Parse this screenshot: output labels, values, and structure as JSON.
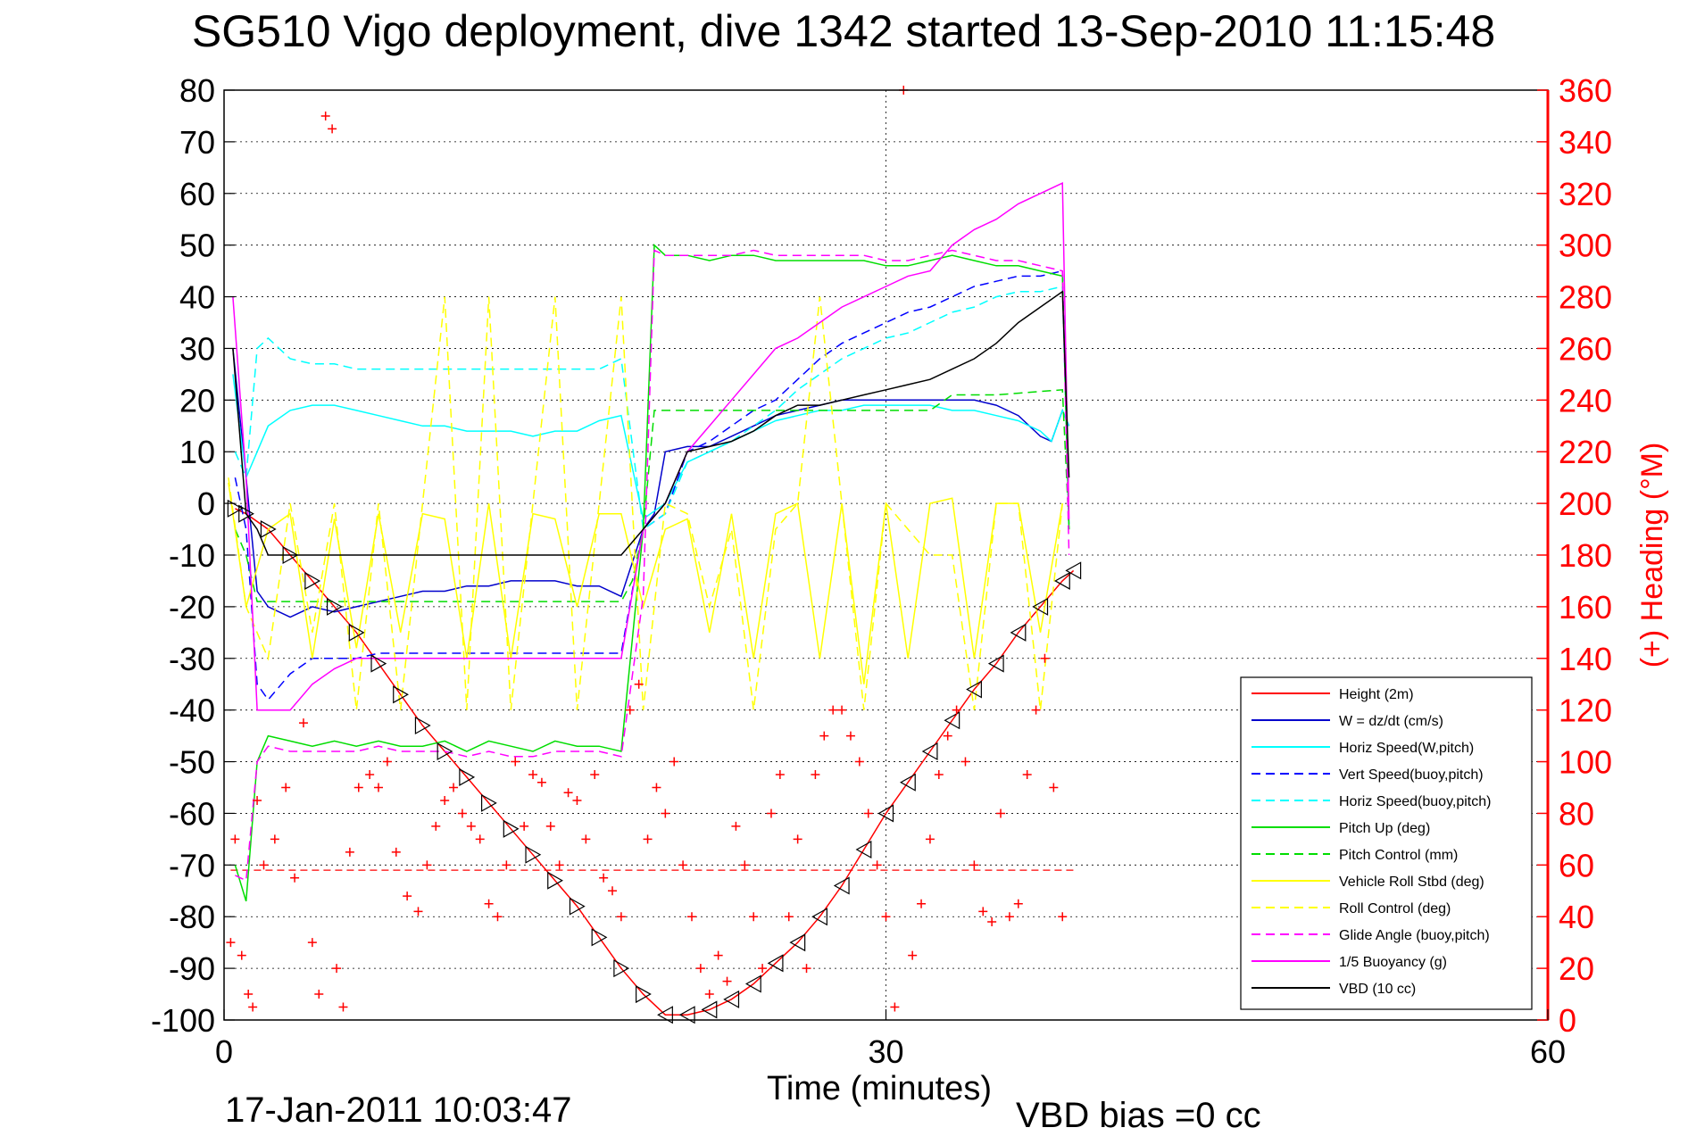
{
  "chart_data": {
    "type": "line",
    "title": "SG510 Vigo deployment, dive 1342 started 13-Sep-2010 11:15:48",
    "xlabel": "Time (minutes)",
    "ylabel_right": "(+) Heading (°M)",
    "xlim": [
      0,
      60
    ],
    "ylim_left": [
      -100,
      80
    ],
    "ylim_right": [
      0,
      360
    ],
    "x_ticks": [
      0,
      30,
      60
    ],
    "y_ticks_left": [
      80,
      70,
      60,
      50,
      40,
      30,
      20,
      10,
      0,
      -10,
      -20,
      -30,
      -40,
      -50,
      -60,
      -70,
      -80,
      -90,
      -100
    ],
    "y_ticks_right": [
      360,
      340,
      320,
      300,
      280,
      260,
      240,
      220,
      200,
      180,
      160,
      140,
      120,
      100,
      80,
      60,
      40,
      20,
      0
    ],
    "grid": true,
    "legend_position": "bottom-right",
    "annotations": {
      "footer_left": "17-Jan-2011 10:03:47",
      "footer_right": "VBD bias =0 cc"
    },
    "series": [
      {
        "name": "Height (2m)",
        "color": "#ff0000",
        "style": "solid",
        "x": [
          0.5,
          1,
          2,
          3,
          4,
          5,
          6,
          7,
          8,
          9,
          10,
          11,
          12,
          13,
          14,
          15,
          16,
          17,
          18,
          19,
          20,
          21,
          22,
          23,
          24,
          25,
          26,
          27,
          28,
          29,
          30,
          31,
          32,
          33,
          34,
          35,
          36,
          37,
          38,
          38.5
        ],
        "y": [
          -1,
          -2,
          -5,
          -10,
          -15,
          -20,
          -25,
          -31,
          -37,
          -43,
          -48,
          -53,
          -58,
          -63,
          -68,
          -73,
          -78,
          -84,
          -90,
          -95,
          -99,
          -99,
          -98,
          -96,
          -93,
          -89,
          -85,
          -80,
          -74,
          -67,
          -60,
          -54,
          -48,
          -42,
          -36,
          -31,
          -25,
          -20,
          -15,
          -13
        ]
      },
      {
        "name": "W = dz/dt (cm/s)",
        "color": "#0000cc",
        "style": "solid",
        "x": [
          0.4,
          1,
          1.5,
          2,
          3,
          4,
          5,
          6,
          7,
          8,
          9,
          10,
          11,
          12,
          13,
          14,
          15,
          16,
          17,
          18,
          19,
          19.5,
          20,
          21,
          22,
          23,
          24,
          25,
          26,
          27,
          28,
          29,
          30,
          31,
          32,
          33,
          34,
          35,
          36,
          37,
          37.5,
          38,
          38.3
        ],
        "y": [
          30,
          5,
          -17,
          -20,
          -22,
          -20,
          -21,
          -20,
          -19,
          -18,
          -17,
          -17,
          -16,
          -16,
          -15,
          -15,
          -15,
          -16,
          -16,
          -18,
          -5,
          -2,
          10,
          11,
          11,
          13,
          15,
          17,
          18,
          19,
          20,
          20,
          20,
          20,
          20,
          20,
          20,
          19,
          17,
          13,
          12,
          18,
          15
        ]
      },
      {
        "name": "Horiz Speed(W,pitch)",
        "color": "#00ffff",
        "style": "solid",
        "x": [
          0.4,
          1,
          1.5,
          2,
          3,
          4,
          5,
          6,
          7,
          8,
          9,
          10,
          11,
          12,
          13,
          14,
          15,
          16,
          17,
          18,
          19,
          20,
          21,
          22,
          23,
          24,
          25,
          26,
          27,
          28,
          29,
          30,
          31,
          32,
          33,
          34,
          35,
          36,
          37,
          37.5,
          38,
          38.3
        ],
        "y": [
          25,
          5,
          10,
          15,
          18,
          19,
          19,
          18,
          17,
          16,
          15,
          15,
          14,
          14,
          14,
          13,
          14,
          14,
          16,
          17,
          -3,
          0,
          8,
          10,
          12,
          14,
          16,
          17,
          18,
          18,
          19,
          19,
          19,
          19,
          18,
          18,
          17,
          16,
          14,
          12,
          18,
          15
        ]
      },
      {
        "name": "Vert Speed(buoy,pitch)",
        "color": "#0000ff",
        "style": "dashed",
        "x": [
          0.5,
          1,
          1.5,
          2,
          3,
          4,
          5,
          6,
          7,
          8,
          9,
          10,
          11,
          12,
          13,
          14,
          15,
          16,
          17,
          18,
          19,
          20,
          21,
          22,
          23,
          24,
          25,
          26,
          27,
          28,
          29,
          30,
          31,
          32,
          33,
          34,
          35,
          36,
          37,
          38,
          38.3
        ],
        "y": [
          5,
          -5,
          -35,
          -38,
          -33,
          -30,
          -30,
          -30,
          -29,
          -29,
          -29,
          -29,
          -29,
          -29,
          -29,
          -29,
          -29,
          -29,
          -29,
          -29,
          -5,
          -2,
          10,
          12,
          15,
          18,
          20,
          24,
          28,
          31,
          33,
          35,
          37,
          38,
          40,
          42,
          43,
          44,
          44,
          45,
          -5
        ]
      },
      {
        "name": "Horiz Speed(buoy,pitch)",
        "color": "#00ffff",
        "style": "dashed",
        "x": [
          0.5,
          1,
          1.5,
          2,
          3,
          4,
          5,
          6,
          7,
          8,
          9,
          10,
          11,
          12,
          13,
          14,
          15,
          16,
          17,
          18,
          19,
          20,
          21,
          22,
          23,
          24,
          25,
          26,
          27,
          28,
          29,
          30,
          31,
          32,
          33,
          34,
          35,
          36,
          37,
          38,
          38.3
        ],
        "y": [
          10,
          5,
          30,
          32,
          28,
          27,
          27,
          26,
          26,
          26,
          26,
          26,
          26,
          26,
          26,
          26,
          26,
          26,
          26,
          28,
          -5,
          -2,
          8,
          10,
          12,
          15,
          18,
          22,
          25,
          28,
          30,
          32,
          33,
          35,
          37,
          38,
          40,
          41,
          41,
          42,
          -5
        ]
      },
      {
        "name": "Pitch Up (deg)",
        "color": "#00dd00",
        "style": "solid",
        "x": [
          0.5,
          1,
          1.5,
          2,
          3,
          4,
          5,
          6,
          7,
          8,
          9,
          10,
          11,
          12,
          13,
          14,
          15,
          16,
          17,
          18,
          19,
          19.5,
          20,
          21,
          22,
          23,
          24,
          25,
          26,
          27,
          28,
          29,
          30,
          31,
          32,
          33,
          34,
          35,
          36,
          37,
          38,
          38.3
        ],
        "y": [
          -70,
          -77,
          -50,
          -45,
          -46,
          -47,
          -46,
          -47,
          -46,
          -47,
          -47,
          -46,
          -48,
          -46,
          -47,
          -48,
          -46,
          -47,
          -47,
          -48,
          -5,
          50,
          48,
          48,
          47,
          48,
          48,
          47,
          47,
          47,
          47,
          47,
          46,
          46,
          47,
          48,
          47,
          46,
          46,
          45,
          44,
          -5
        ]
      },
      {
        "name": "Pitch Control (mm)",
        "color": "#00dd00",
        "style": "dashed",
        "x": [
          0.5,
          1,
          1.5,
          2,
          5,
          10,
          15,
          18,
          18.5,
          19,
          19.5,
          20,
          25,
          30,
          32,
          33,
          35,
          38,
          38.3
        ],
        "y": [
          -5,
          -10,
          -19,
          -19,
          -19,
          -19,
          -19,
          -19,
          -15,
          -5,
          18,
          18,
          18,
          18,
          18,
          21,
          21,
          22,
          -5
        ]
      },
      {
        "name": "Vehicle Roll Stbd (deg)",
        "color": "#ffff00",
        "style": "solid",
        "x": [
          0.2,
          1,
          2,
          3,
          4,
          5,
          6,
          7,
          8,
          9,
          10,
          11,
          12,
          13,
          14,
          15,
          16,
          17,
          18,
          19,
          20,
          21,
          22,
          23,
          24,
          25,
          26,
          27,
          28,
          29,
          30,
          31,
          32,
          33,
          34,
          35,
          36,
          37,
          38
        ],
        "y": [
          4,
          -20,
          -5,
          -2,
          -30,
          -3,
          -28,
          -2,
          -25,
          -2,
          -3,
          -30,
          0,
          -30,
          -2,
          -3,
          -20,
          -2,
          -2,
          -20,
          -5,
          -3,
          -25,
          -2,
          -30,
          -2,
          0,
          -30,
          0,
          -35,
          0,
          -30,
          0,
          1,
          -30,
          0,
          0,
          -25,
          0
        ]
      },
      {
        "name": "Roll Control (deg)",
        "color": "#ffff00",
        "style": "dashed",
        "x": [
          0.2,
          1,
          2,
          3,
          4,
          5,
          6,
          7,
          8,
          9,
          10,
          11,
          12,
          13,
          14,
          15,
          16,
          17,
          18,
          19,
          20,
          21,
          22,
          23,
          24,
          25,
          26,
          27,
          28,
          29,
          30,
          31,
          32,
          33,
          34,
          35,
          36,
          37,
          38
        ],
        "y": [
          5,
          -20,
          -30,
          0,
          -25,
          0,
          -40,
          0,
          -40,
          0,
          40,
          -40,
          40,
          -40,
          0,
          40,
          -40,
          0,
          40,
          -40,
          0,
          -2,
          -20,
          -5,
          -40,
          -5,
          0,
          40,
          0,
          -40,
          0,
          -5,
          -10,
          -10,
          -40,
          0,
          0,
          -40,
          0
        ]
      },
      {
        "name": "Glide Angle (buoy,pitch)",
        "color": "#ff00ff",
        "style": "dashed",
        "x": [
          0.5,
          1,
          1.5,
          2,
          3,
          4,
          5,
          6,
          7,
          8,
          9,
          10,
          11,
          12,
          13,
          14,
          15,
          16,
          17,
          18,
          19,
          19.5,
          20,
          21,
          22,
          23,
          24,
          25,
          26,
          27,
          28,
          29,
          30,
          31,
          32,
          33,
          34,
          35,
          36,
          37,
          38,
          38.3
        ],
        "y": [
          -72,
          -73,
          -50,
          -47,
          -48,
          -48,
          -48,
          -48,
          -47,
          -48,
          -48,
          -48,
          -49,
          -48,
          -49,
          -49,
          -48,
          -48,
          -48,
          -49,
          -18,
          49,
          48,
          48,
          48,
          48,
          49,
          48,
          48,
          48,
          48,
          48,
          47,
          47,
          48,
          49,
          48,
          47,
          47,
          46,
          45,
          -10
        ]
      },
      {
        "name": "1/5 Buoyancy (g)",
        "color": "#ff00ff",
        "style": "solid",
        "x": [
          0.4,
          1,
          1.5,
          2,
          3,
          4,
          5,
          6,
          7,
          8,
          9,
          10,
          11,
          12,
          13,
          14,
          15,
          16,
          17,
          18,
          19,
          20,
          21,
          22,
          23,
          24,
          25,
          26,
          27,
          28,
          29,
          30,
          31,
          32,
          33,
          34,
          35,
          36,
          37,
          38,
          38.3
        ],
        "y": [
          40,
          5,
          -40,
          -40,
          -40,
          -35,
          -32,
          -30,
          -30,
          -30,
          -30,
          -30,
          -30,
          -30,
          -30,
          -30,
          -30,
          -30,
          -30,
          -30,
          -5,
          0,
          10,
          15,
          20,
          25,
          30,
          32,
          35,
          38,
          40,
          42,
          44,
          45,
          50,
          53,
          55,
          58,
          60,
          62,
          -3
        ]
      },
      {
        "name": "VBD (10 cc)",
        "color": "#000000",
        "style": "solid",
        "x": [
          0.4,
          1,
          1.5,
          2,
          5,
          10,
          15,
          18,
          19,
          20,
          21,
          22,
          23,
          24,
          25,
          26,
          27,
          28,
          29,
          30,
          31,
          32,
          33,
          34,
          35,
          36,
          37,
          38,
          38.3
        ],
        "y": [
          30,
          -2,
          -5,
          -10,
          -10,
          -10,
          -10,
          -10,
          -5,
          0,
          10,
          11,
          12,
          14,
          17,
          19,
          19,
          20,
          21,
          22,
          23,
          24,
          26,
          28,
          31,
          35,
          38,
          41,
          5
        ]
      }
    ],
    "heading_scatter": {
      "name": "Heading",
      "color": "#ff0000",
      "marker": "+",
      "axis": "right",
      "x": [
        0.3,
        0.5,
        0.8,
        1.1,
        1.3,
        1.5,
        1.8,
        2.3,
        2.8,
        3.2,
        3.6,
        4.0,
        4.3,
        4.6,
        4.9,
        5.1,
        5.4,
        5.7,
        6.1,
        6.6,
        7.0,
        7.4,
        7.8,
        8.3,
        8.8,
        9.2,
        9.6,
        10.0,
        10.4,
        10.8,
        11.2,
        11.6,
        12.0,
        12.4,
        12.8,
        13.2,
        13.6,
        14.0,
        14.4,
        14.8,
        15.2,
        15.6,
        16.0,
        16.4,
        16.8,
        17.2,
        17.6,
        18.0,
        18.4,
        18.8,
        19.2,
        19.6,
        20.0,
        20.4,
        20.8,
        21.2,
        21.6,
        22.0,
        22.4,
        22.8,
        23.2,
        23.6,
        24.0,
        24.4,
        24.8,
        25.2,
        25.6,
        26.0,
        26.4,
        26.8,
        27.2,
        27.6,
        28.0,
        28.4,
        28.8,
        29.2,
        29.6,
        30.0,
        30.4,
        30.8,
        31.2,
        31.6,
        32.0,
        32.4,
        32.8,
        33.2,
        33.6,
        34.0,
        34.4,
        34.8,
        35.2,
        35.6,
        36.0,
        36.4,
        36.8,
        37.2,
        37.6,
        38.0
      ],
      "y": [
        30,
        70,
        25,
        10,
        5,
        85,
        60,
        70,
        90,
        55,
        115,
        30,
        10,
        350,
        345,
        20,
        5,
        65,
        90,
        95,
        90,
        100,
        65,
        48,
        42,
        60,
        75,
        85,
        90,
        80,
        75,
        70,
        45,
        40,
        60,
        100,
        75,
        95,
        92,
        75,
        60,
        88,
        85,
        70,
        95,
        55,
        50,
        40,
        120,
        130,
        70,
        90,
        80,
        100,
        60,
        40,
        20,
        10,
        25,
        15,
        75,
        60,
        40,
        20,
        80,
        95,
        40,
        70,
        20,
        95,
        110,
        120,
        120,
        110,
        100,
        80,
        60,
        40,
        5,
        360,
        25,
        45,
        70,
        95,
        110,
        120,
        100,
        60,
        42,
        38,
        80,
        40,
        45,
        95,
        120,
        140,
        90,
        40
      ]
    }
  }
}
